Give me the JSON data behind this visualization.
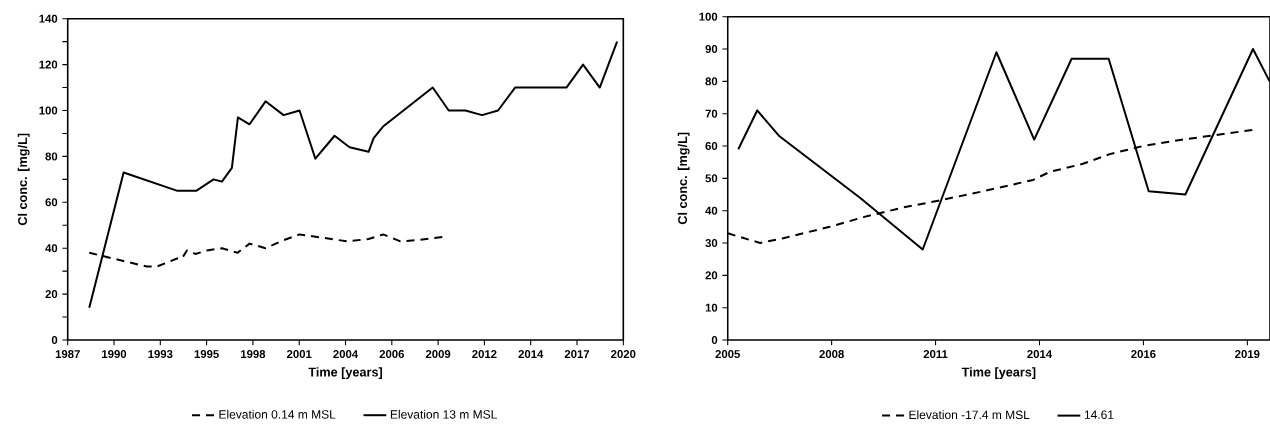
{
  "chart_data": [
    {
      "type": "line",
      "xlabel": "Time [years]",
      "ylabel": "Cl conc. [mg/L]",
      "xlim": [
        1987,
        2020
      ],
      "ylim": [
        0,
        140
      ],
      "xticks": [
        {
          "value": 1987,
          "label": "1987"
        },
        {
          "value": 1989.75,
          "label": "1990"
        },
        {
          "value": 1992.5,
          "label": "1993"
        },
        {
          "value": 1995.25,
          "label": "1995"
        },
        {
          "value": 1998,
          "label": "1998"
        },
        {
          "value": 2000.75,
          "label": "2001"
        },
        {
          "value": 2003.5,
          "label": "2004"
        },
        {
          "value": 2006.25,
          "label": "2006"
        },
        {
          "value": 2009,
          "label": "2009"
        },
        {
          "value": 2011.75,
          "label": "2012"
        },
        {
          "value": 2014.5,
          "label": "2014"
        },
        {
          "value": 2017.25,
          "label": "2017"
        },
        {
          "value": 2020,
          "label": "2020"
        }
      ],
      "yticks": [
        0,
        {
          "value": 10,
          "label": null
        },
        20,
        {
          "value": 30,
          "label": null
        },
        40,
        {
          "value": 50,
          "label": null
        },
        60,
        {
          "value": 70,
          "label": null
        },
        80,
        {
          "value": 90,
          "label": null
        },
        100,
        {
          "value": 110,
          "label": null
        },
        120,
        {
          "value": 130,
          "label": null
        },
        140
      ],
      "legend": "bottom",
      "series": [
        {
          "name": "Elevation 0.14 m MSL",
          "color": "#000000",
          "line_style": "dashed",
          "x": [
            1988.28,
            1991.7,
            1992.3,
            1993.49,
            1993.78,
            1994.08,
            1994.58,
            1995.27,
            1996.16,
            1997.09,
            1997.8,
            1998.75,
            1999.82,
            2000.77,
            2001.71,
            2003.59,
            2004.87,
            2005.73,
            2006.76,
            2007.75,
            2009.33
          ],
          "values": [
            38,
            32,
            32,
            35.5,
            35.5,
            39,
            37.5,
            39,
            40,
            38,
            42,
            40,
            43.5,
            46,
            45,
            43,
            44,
            46,
            43,
            43.5,
            45
          ]
        },
        {
          "name": "Elevation 13 m MSL",
          "color": "#000000",
          "line_style": "solid",
          "x": [
            1988.28,
            1990.32,
            1993.52,
            1994.63,
            1995.66,
            1996.16,
            1996.75,
            1997.11,
            1997.8,
            1998.75,
            1999.82,
            2000.77,
            2001.71,
            2002.85,
            2003.74,
            2004.87,
            2005.17,
            2005.73,
            2008.68,
            2009.63,
            2010.62,
            2011.61,
            2012.56,
            2013.57,
            2016.62,
            2017.61,
            2018.6,
            2019.63
          ],
          "values": [
            14,
            73,
            65,
            65,
            70,
            69,
            75,
            97,
            94,
            104,
            98,
            100,
            79,
            89,
            84,
            82,
            88,
            93,
            110,
            100,
            100,
            98,
            100,
            110,
            110,
            120,
            110,
            130
          ]
        }
      ]
    },
    {
      "type": "line",
      "xlabel": "Time [years]",
      "ylabel": "Cl conc. [mg/L]",
      "xlim": [
        2005.3,
        2019.65
      ],
      "ylim": [
        0,
        100
      ],
      "xticks": [
        {
          "value": 2005.3,
          "label": "2005"
        },
        {
          "value": 2008.05,
          "label": "2008"
        },
        {
          "value": 2010.8,
          "label": "2011"
        },
        {
          "value": 2013.55,
          "label": "2014"
        },
        {
          "value": 2016.3,
          "label": "2016"
        },
        {
          "value": 2019.05,
          "label": "2019"
        }
      ],
      "yticks": [
        0,
        10,
        20,
        30,
        40,
        50,
        60,
        70,
        80,
        90,
        100
      ],
      "legend": "bottom",
      "series": [
        {
          "name": "Elevation -17.4 m MSL",
          "color": "#000000",
          "line_style": "dashed",
          "x": [
            2005.3,
            2006.16,
            2006.77,
            2008.0,
            2008.89,
            2009.95,
            2010.83,
            2012.06,
            2013.38,
            2013.82,
            2014.7,
            2015.41,
            2016.29,
            2017.35,
            2019.2
          ],
          "values": [
            33,
            30,
            31.5,
            35,
            38,
            41,
            43,
            46,
            49.5,
            52,
            54.5,
            57.5,
            60,
            62,
            65
          ]
        },
        {
          "name": "14.61",
          "color": "#000000",
          "line_style": "solid",
          "x": [
            2005.58,
            2006.08,
            2006.67,
            2008.8,
            2010.46,
            2012.41,
            2013.41,
            2014.4,
            2015.38,
            2016.44,
            2017.41,
            2019.2,
            2019.64
          ],
          "values": [
            59,
            71,
            63,
            44,
            28,
            89,
            62,
            87,
            87,
            46,
            45,
            90,
            80
          ]
        }
      ]
    }
  ]
}
